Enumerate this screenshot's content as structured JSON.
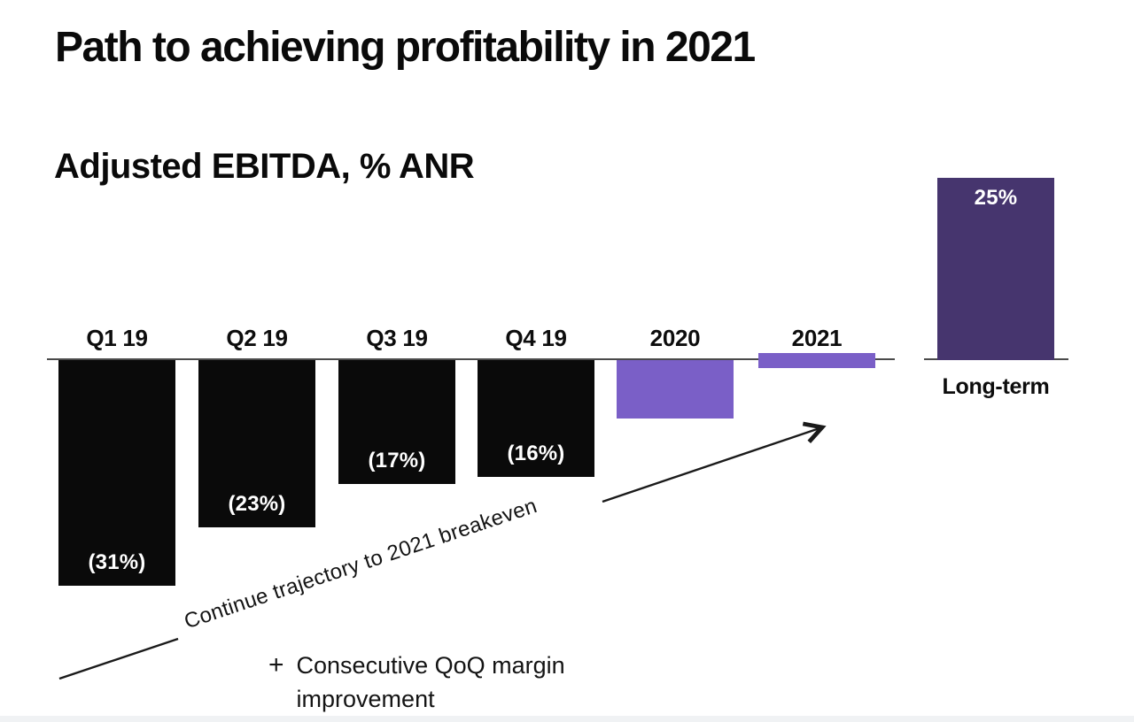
{
  "slide": {
    "title": "Path to achieving profitability in 2021",
    "subtitle": "Adjusted EBITDA, % ANR"
  },
  "chart_data": {
    "type": "bar",
    "title": "Adjusted EBITDA, % ANR",
    "ylabel": "Adjusted EBITDA (% ANR)",
    "xlabel": "",
    "categories": [
      "Q1 19",
      "Q2 19",
      "Q3 19",
      "Q4 19",
      "2020",
      "2021",
      "Long-term"
    ],
    "values": [
      -31,
      -23,
      -17,
      -16,
      -8,
      0,
      25
    ],
    "ylim": [
      -33,
      27
    ],
    "grid": false,
    "legend": false,
    "baseline_value": 0,
    "bars": [
      {
        "category": "Q1 19",
        "value": -31,
        "value_label": "(31%)",
        "color": "black",
        "label_position": "above",
        "value_label_position": "inside-bottom"
      },
      {
        "category": "Q2 19",
        "value": -23,
        "value_label": "(23%)",
        "color": "black",
        "label_position": "above",
        "value_label_position": "inside-bottom"
      },
      {
        "category": "Q3 19",
        "value": -17,
        "value_label": "(17%)",
        "color": "black",
        "label_position": "above",
        "value_label_position": "inside-bottom"
      },
      {
        "category": "Q4 19",
        "value": -16,
        "value_label": "(16%)",
        "color": "black",
        "label_position": "above",
        "value_label_position": "inside-bottom"
      },
      {
        "category": "2020",
        "value": -8,
        "value_label": "",
        "color": "purple",
        "label_position": "above",
        "value_label_position": "none"
      },
      {
        "category": "2021",
        "value": 0,
        "value_label": "",
        "color": "purple",
        "label_position": "above",
        "value_label_position": "none"
      },
      {
        "category": "Long-term",
        "value": 25,
        "value_label": "25%",
        "color": "dark-purple",
        "label_position": "below",
        "value_label_position": "inside-top"
      }
    ]
  },
  "annotations": {
    "trajectory_label": "Continue trajectory to 2021 breakeven",
    "plus_sign": "+",
    "qoq_note": "Consecutive QoQ margin improvement"
  },
  "colors": {
    "bar_black": "#0a0a0a",
    "bar_purple": "#7a5fc7",
    "bar_dark_purple": "#46356e",
    "axis_line": "#4a4a4a",
    "annotation_line": "#1a1a1a",
    "text": "#0d0d0d",
    "value_text_light": "#ffffff"
  }
}
